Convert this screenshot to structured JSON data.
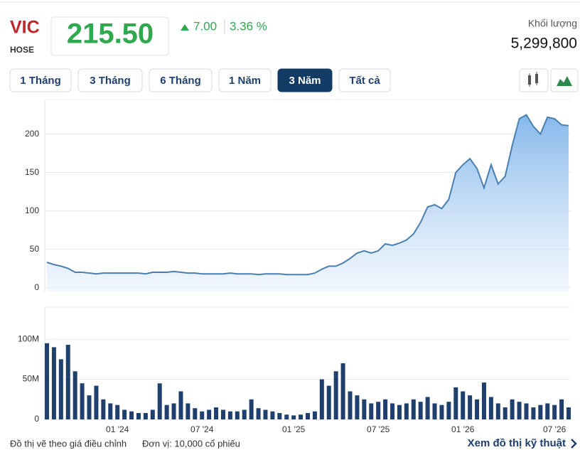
{
  "header": {
    "ticker": "VIC",
    "exchange": "HOSE",
    "price": "215.50",
    "change": "7.00",
    "change_percent": "3.36 %",
    "volume_label": "Khối lượng",
    "volume": "5,299,800"
  },
  "ranges": [
    "1 Tháng",
    "3 Tháng",
    "6 Tháng",
    "1 Năm",
    "3 Năm",
    "Tất cả"
  ],
  "chart_data": [
    {
      "type": "area",
      "color": "#4a7fb0",
      "ylim": [
        -5,
        245
      ],
      "yticks": [
        0,
        50,
        100,
        150,
        200
      ],
      "grid": true,
      "values": [
        33,
        30,
        28,
        25,
        20,
        20,
        19,
        18,
        19,
        19,
        19,
        19,
        19,
        19,
        18,
        20,
        20,
        20,
        21,
        20,
        19,
        19,
        18,
        18,
        18,
        18,
        19,
        18,
        18,
        18,
        17,
        18,
        18,
        18,
        17,
        17,
        17,
        17,
        19,
        24,
        28,
        28,
        32,
        38,
        45,
        48,
        45,
        48,
        57,
        55,
        58,
        62,
        70,
        85,
        105,
        108,
        103,
        115,
        150,
        160,
        168,
        155,
        130,
        160,
        135,
        145,
        185,
        220,
        225,
        210,
        200,
        222,
        220,
        212,
        211
      ]
    },
    {
      "type": "bar",
      "color": "#1f3f6e",
      "ylim": [
        0,
        140
      ],
      "grid": true,
      "yticks": [
        0,
        {
          "value": 50,
          "label": "50M"
        },
        {
          "value": 100,
          "label": "100M"
        }
      ],
      "categories": [
        null,
        null,
        null,
        null,
        null,
        null,
        null,
        null,
        null,
        null,
        "01 '24",
        null,
        null,
        null,
        null,
        null,
        null,
        null,
        null,
        null,
        null,
        null,
        "07 '24",
        null,
        null,
        null,
        null,
        null,
        null,
        null,
        null,
        null,
        null,
        null,
        null,
        "01 '25",
        null,
        null,
        null,
        null,
        null,
        null,
        null,
        null,
        null,
        null,
        null,
        "07 '25",
        null,
        null,
        null,
        null,
        null,
        null,
        null,
        null,
        null,
        null,
        null,
        "01 '26",
        null,
        null,
        null,
        null,
        null,
        null,
        null,
        null,
        null,
        null,
        null,
        null,
        "07 '26",
        null,
        null
      ],
      "values": [
        95,
        90,
        75,
        93,
        60,
        45,
        30,
        42,
        25,
        20,
        18,
        12,
        10,
        8,
        8,
        12,
        45,
        18,
        20,
        35,
        20,
        14,
        10,
        12,
        15,
        12,
        10,
        10,
        12,
        25,
        14,
        12,
        10,
        8,
        6,
        5,
        6,
        8,
        10,
        50,
        42,
        60,
        70,
        35,
        30,
        25,
        20,
        22,
        25,
        20,
        18,
        20,
        25,
        22,
        28,
        20,
        18,
        22,
        40,
        35,
        30,
        25,
        46,
        28,
        20,
        15,
        25,
        22,
        20,
        15,
        18,
        20,
        18,
        25,
        15
      ]
    }
  ],
  "footer": {
    "note": "Đồ thị vẽ theo giá điều chỉnh",
    "unit": "Đơn vị: 10,000 cổ phiếu",
    "link": "Xem đồ thị kỹ thuật"
  }
}
